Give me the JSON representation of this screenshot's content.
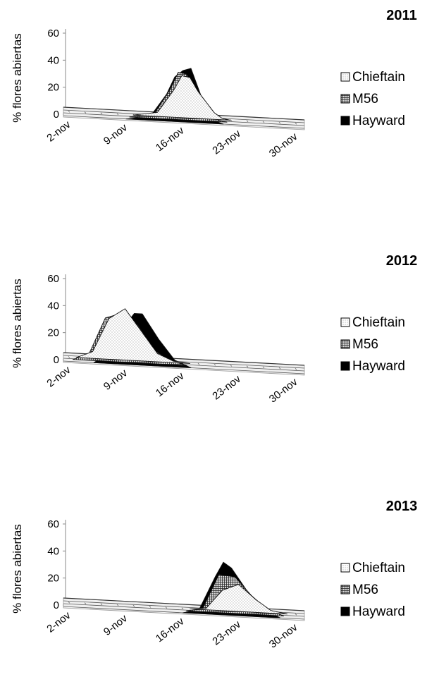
{
  "chart_data": [
    {
      "type": "area",
      "title": "2011",
      "ylabel": "% flores abiertas",
      "xlabel": "",
      "ylim": [
        0,
        60
      ],
      "yticks": [
        "0",
        "20",
        "40",
        "60"
      ],
      "x": [
        "2-nov",
        "9-nov",
        "16-nov",
        "23-nov",
        "30-nov"
      ],
      "legend": "right",
      "grid": false,
      "series": [
        {
          "name": "Chieftain",
          "x": [
            10,
            13,
            15,
            16,
            17,
            18,
            20,
            21,
            22
          ],
          "y": [
            0,
            3,
            20,
            31,
            30,
            20,
            5,
            1,
            0
          ]
        },
        {
          "name": "M56",
          "x": [
            10,
            13,
            15,
            16,
            17,
            18,
            20,
            21,
            22
          ],
          "y": [
            0,
            3,
            22,
            35,
            34,
            24,
            6,
            1,
            0
          ]
        },
        {
          "name": "Hayward",
          "x": [
            10,
            13,
            15,
            16,
            17,
            18,
            20,
            21,
            22
          ],
          "y": [
            0,
            3,
            20,
            33,
            38,
            40,
            8,
            2,
            0
          ]
        }
      ]
    },
    {
      "type": "area",
      "title": "2012",
      "ylabel": "% flores abiertas",
      "xlabel": "",
      "ylim": [
        0,
        60
      ],
      "yticks": [
        "0",
        "20",
        "40",
        "60"
      ],
      "x": [
        "2-nov",
        "9-nov",
        "16-nov",
        "23-nov",
        "30-nov"
      ],
      "legend": "right",
      "grid": false,
      "series": [
        {
          "name": "Chieftain",
          "x": [
            3,
            5,
            7,
            9,
            11,
            13,
            15,
            17
          ],
          "y": [
            0,
            5,
            30,
            38,
            22,
            6,
            1,
            0
          ]
        },
        {
          "name": "M56",
          "x": [
            3,
            5,
            7,
            9,
            11,
            13,
            15,
            17
          ],
          "y": [
            0,
            5,
            32,
            36,
            28,
            10,
            3,
            0
          ]
        },
        {
          "name": "Hayward",
          "x": [
            6,
            8,
            10,
            11,
            12,
            14,
            16,
            18
          ],
          "y": [
            0,
            8,
            30,
            38,
            38,
            20,
            5,
            0
          ]
        }
      ]
    },
    {
      "type": "area",
      "title": "2013",
      "ylabel": "% flores abiertas",
      "xlabel": "",
      "ylim": [
        0,
        60
      ],
      "yticks": [
        "0",
        "20",
        "40",
        "60"
      ],
      "x": [
        "2-nov",
        "9-nov",
        "16-nov",
        "23-nov",
        "30-nov"
      ],
      "legend": "right",
      "grid": false,
      "series": [
        {
          "name": "Chieftain",
          "x": [
            17,
            19,
            21,
            23,
            25,
            27,
            29
          ],
          "y": [
            0,
            1,
            15,
            20,
            10,
            2,
            0
          ]
        },
        {
          "name": "M56",
          "x": [
            17,
            19,
            21,
            23,
            25,
            27,
            29
          ],
          "y": [
            0,
            2,
            28,
            27,
            14,
            4,
            0
          ]
        },
        {
          "name": "Hayward",
          "x": [
            17,
            19,
            21,
            22,
            23,
            25,
            27,
            29
          ],
          "y": [
            0,
            3,
            28,
            39,
            35,
            18,
            6,
            0
          ]
        }
      ]
    }
  ]
}
